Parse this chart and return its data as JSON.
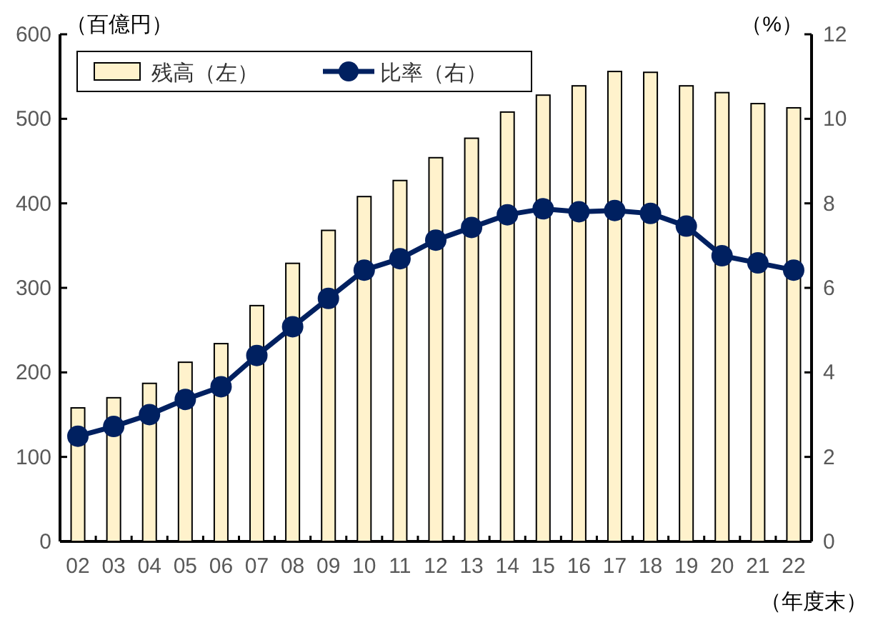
{
  "chart_data": {
    "type": "bar",
    "ylabel": "（百億円）",
    "y2label": "（%）",
    "xlabel": "（年度末）",
    "categories": [
      "02",
      "03",
      "04",
      "05",
      "06",
      "07",
      "08",
      "09",
      "10",
      "11",
      "12",
      "13",
      "14",
      "15",
      "16",
      "17",
      "18",
      "19",
      "20",
      "21",
      "22"
    ],
    "series": [
      {
        "name": "残高（左）",
        "color": "#fff2cc",
        "values": [
          158,
          170,
          187,
          212,
          234,
          279,
          329,
          368,
          408,
          427,
          454,
          477,
          508,
          528,
          539,
          556,
          555,
          539,
          531,
          518,
          513
        ]
      },
      {
        "name": "比率（右）",
        "type": "line",
        "axis": "y2",
        "color": "#002060",
        "marker": "circle",
        "values": [
          2.49,
          2.72,
          3.0,
          3.36,
          3.66,
          4.4,
          5.08,
          5.75,
          6.42,
          6.69,
          7.13,
          7.43,
          7.73,
          7.87,
          7.8,
          7.83,
          7.76,
          7.46,
          6.76,
          6.59,
          6.42
        ]
      }
    ],
    "ylim": [
      0,
      600
    ],
    "yticks": [
      0,
      100,
      200,
      300,
      400,
      500,
      600
    ],
    "y2lim": [
      0,
      12
    ],
    "y2ticks": [
      0,
      2,
      4,
      6,
      8,
      10,
      12
    ],
    "legend": "top left"
  }
}
